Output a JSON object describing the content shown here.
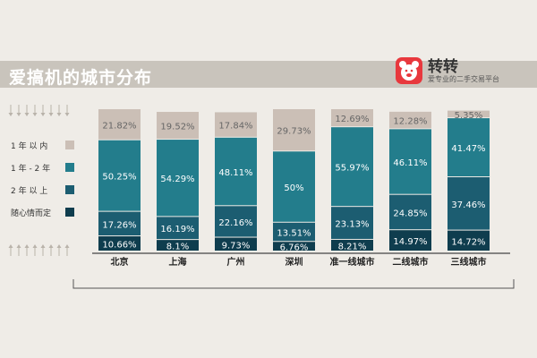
{
  "header": {
    "title": "爱搞机的城市分布",
    "brand_name": "转转",
    "brand_slogan": "爱专业的二手交易平台"
  },
  "colors": {
    "background": "#efece7",
    "title_bar": "#c9c4bc",
    "brand_red": "#e8383d"
  },
  "chart_data": {
    "type": "bar",
    "stacked": true,
    "percent": true,
    "categories": [
      "北京",
      "上海",
      "广州",
      "深圳",
      "准一线城市",
      "二线城市",
      "三线城市"
    ],
    "series": [
      {
        "name": "随心情而定",
        "color": "#0f3d4e",
        "values": [
          10.66,
          8.1,
          9.73,
          6.76,
          8.21,
          14.97,
          14.72
        ]
      },
      {
        "name": "2 年 以 上",
        "color": "#1c5d71",
        "values": [
          17.26,
          16.19,
          22.16,
          13.51,
          23.13,
          24.85,
          37.46
        ]
      },
      {
        "name": "1 年 - 2 年",
        "color": "#237d8c",
        "values": [
          50.25,
          54.29,
          48.11,
          50,
          55.97,
          46.11,
          41.47
        ]
      },
      {
        "name": "1 年 以 内",
        "color": "#cbbfb6",
        "values": [
          21.82,
          19.52,
          17.84,
          29.73,
          12.69,
          12.28,
          5.35
        ]
      }
    ],
    "value_labels": [
      [
        "10.66%",
        "8.1%",
        "9.73%",
        "6.76%",
        "8.21%",
        "14.97%",
        "14.72%"
      ],
      [
        "17.26%",
        "16.19%",
        "22.16%",
        "13.51%",
        "23.13%",
        "24.85%",
        "37.46%"
      ],
      [
        "50.25%",
        "54.29%",
        "48.11%",
        "50%",
        "55.97%",
        "46.11%",
        "41.47%"
      ],
      [
        "21.82%",
        "19.52%",
        "17.84%",
        "29.73%",
        "12.69%",
        "12.28%",
        "5.35%"
      ]
    ],
    "legend": [
      "1 年 以 内",
      "1 年 - 2 年",
      "2 年 以 上",
      "随心情而定"
    ],
    "legend_colors": [
      "#cbbfb6",
      "#237d8c",
      "#1c5d71",
      "#0f3d4e"
    ],
    "legend_position": "left",
    "ylim": [
      0,
      100
    ]
  }
}
